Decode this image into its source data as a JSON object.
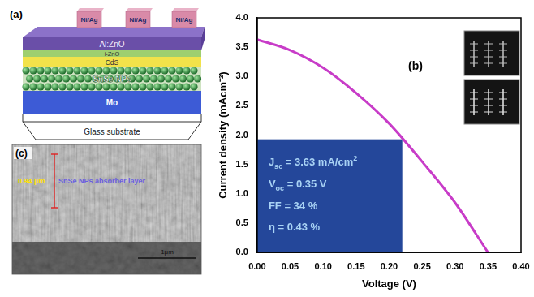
{
  "chart_data": {
    "type": "line",
    "panel_label": "(b)",
    "x": [
      0,
      0.05,
      0.1,
      0.15,
      0.2,
      0.25,
      0.3,
      0.35
    ],
    "values": [
      3.63,
      3.45,
      3.15,
      2.72,
      2.2,
      1.55,
      0.85,
      0
    ],
    "color": "#c83cc8",
    "x_label": "Voltage (V)",
    "y_label": "Current density (mAcm⁻²)",
    "xlim": [
      0,
      0.4
    ],
    "xticks": [
      {
        "value": 0,
        "label": "0.00"
      },
      {
        "value": 0.05,
        "label": "0.05"
      },
      {
        "value": 0.1,
        "label": "0.10"
      },
      {
        "value": 0.15,
        "label": "0.15"
      },
      {
        "value": 0.2,
        "label": "0.20"
      },
      {
        "value": 0.25,
        "label": "0.25"
      },
      {
        "value": 0.3,
        "label": "0.30"
      },
      {
        "value": 0.35,
        "label": "0.35"
      },
      {
        "value": 0.4,
        "label": "0.40"
      }
    ],
    "ylim": [
      0,
      4
    ],
    "yticks": [
      {
        "value": 0,
        "label": "0.0"
      },
      {
        "value": 0.5,
        "label": "0.5"
      },
      {
        "value": 1,
        "label": "1.0"
      },
      {
        "value": 1.5,
        "label": "1.5"
      },
      {
        "value": 2,
        "label": "2.0"
      },
      {
        "value": 2.5,
        "label": "2.5"
      },
      {
        "value": 3,
        "label": "3.0"
      },
      {
        "value": 3.5,
        "label": "3.5"
      },
      {
        "value": 4,
        "label": "4.0"
      }
    ],
    "grid": false,
    "results_box": {
      "xlim": [
        0,
        0.22
      ],
      "ylim": [
        0,
        1.93
      ],
      "color": "#24479a",
      "lines": [
        {
          "main": "J",
          "sub": "sc",
          "rest": " = 3.63 mA/cm",
          "sup": "2"
        },
        {
          "main": "V",
          "sub": "oc",
          "rest": " = 0.35 V"
        },
        {
          "main": "FF = 34 %"
        },
        {
          "main": "η = 0.43 %"
        }
      ]
    }
  },
  "schematic": {
    "panel_label": "(a)",
    "contacts": [
      "Ni/Ag",
      "Ni/Ag",
      "Ni/Ag"
    ],
    "layers": [
      "Al:ZnO",
      "i-ZnO",
      "CdS",
      "SnSe NPs",
      "Mo",
      "Glass substrate"
    ]
  },
  "sem": {
    "panel_label": "(c)",
    "thickness": "0.94 μm",
    "layer_label": "SnSe NPs absorber layer",
    "scale_bar": "1μm"
  }
}
